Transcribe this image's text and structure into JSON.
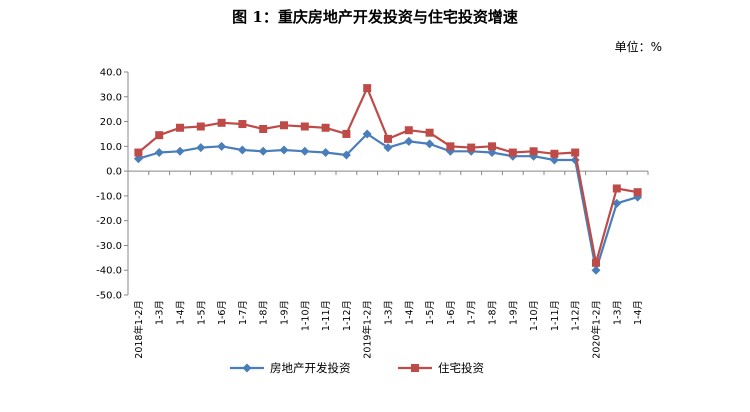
{
  "chart_data": {
    "type": "line",
    "title": "图 1：重庆房地产开发投资与住宅投资增速",
    "unit": "单位：%",
    "ylim": [
      -50,
      40
    ],
    "y_ticks": [
      "40.0",
      "30.0",
      "20.0",
      "10.0",
      "0.0",
      "-10.0",
      "-20.0",
      "-30.0",
      "-40.0",
      "-50.0"
    ],
    "y_tick_values": [
      40,
      30,
      20,
      10,
      0,
      -10,
      -20,
      -30,
      -40,
      -50
    ],
    "categories": [
      "2018年1-2月",
      "1-3月",
      "1-4月",
      "1-5月",
      "1-6月",
      "1-7月",
      "1-8月",
      "1-9月",
      "1-10月",
      "1-11月",
      "1-12月",
      "2019年1-2月",
      "1-3月",
      "1-4月",
      "1-5月",
      "1-6月",
      "1-7月",
      "1-8月",
      "1-9月",
      "1-10月",
      "1-11月",
      "1-12月",
      "2020年1-2月",
      "1-3月",
      "1-4月"
    ],
    "series": [
      {
        "name": "房地产开发投资",
        "color": "#4a7ebb",
        "marker": "diamond",
        "values": [
          5.0,
          7.5,
          8.0,
          9.5,
          10.0,
          8.5,
          8.0,
          8.5,
          8.0,
          7.5,
          6.5,
          15.0,
          9.5,
          12.0,
          11.0,
          8.0,
          8.0,
          7.5,
          6.0,
          6.0,
          4.5,
          4.5,
          -40.0,
          -13.0,
          -10.5
        ]
      },
      {
        "name": "住宅投资",
        "color": "#be4b48",
        "marker": "square",
        "values": [
          7.5,
          14.5,
          17.5,
          18.0,
          19.5,
          19.0,
          17.0,
          18.5,
          18.0,
          17.5,
          15.0,
          33.5,
          13.0,
          16.5,
          15.5,
          10.0,
          9.5,
          10.0,
          7.5,
          8.0,
          7.0,
          7.5,
          -37.0,
          -7.0,
          -8.5
        ]
      }
    ],
    "grid": false,
    "legend_position": "bottom"
  }
}
